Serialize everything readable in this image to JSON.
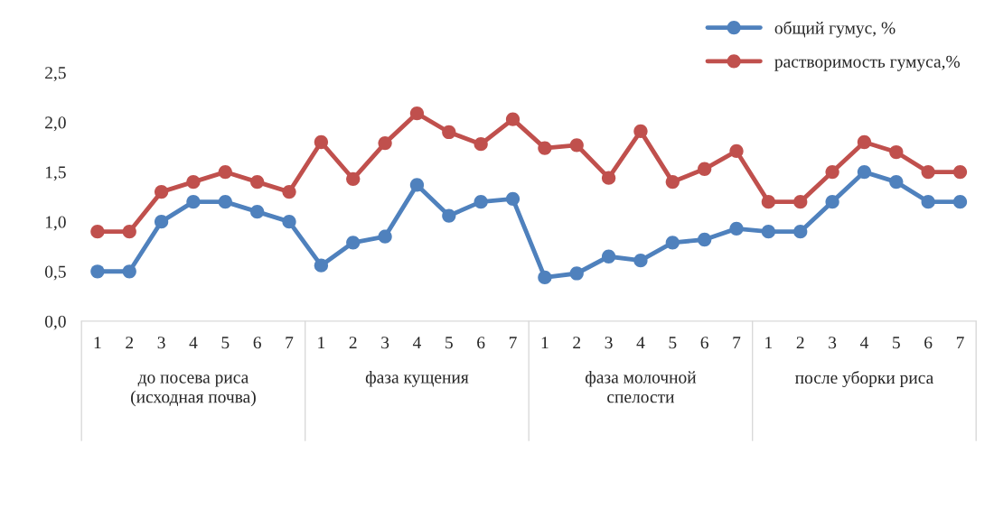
{
  "chart_data": {
    "type": "line",
    "categories": [
      "1",
      "2",
      "3",
      "4",
      "5",
      "6",
      "7",
      "1",
      "2",
      "3",
      "4",
      "5",
      "6",
      "7",
      "1",
      "2",
      "3",
      "4",
      "5",
      "6",
      "7",
      "1",
      "2",
      "3",
      "4",
      "5",
      "6",
      "7"
    ],
    "series": [
      {
        "name": "общий гумус, %",
        "color": "#4f81bd",
        "values": [
          0.5,
          0.5,
          1.0,
          1.2,
          1.2,
          1.1,
          1.0,
          0.56,
          0.79,
          0.85,
          1.37,
          1.06,
          1.2,
          1.23,
          0.44,
          0.48,
          0.65,
          0.61,
          0.79,
          0.82,
          0.93,
          0.9,
          0.9,
          1.2,
          1.5,
          1.4,
          1.2,
          1.2
        ]
      },
      {
        "name": "растворимость гумуса,%",
        "color": "#c0504d",
        "values": [
          0.9,
          0.9,
          1.3,
          1.4,
          1.5,
          1.4,
          1.3,
          1.8,
          1.43,
          1.79,
          2.09,
          1.9,
          1.78,
          2.03,
          1.74,
          1.77,
          1.44,
          1.91,
          1.4,
          1.53,
          1.71,
          1.2,
          1.2,
          1.5,
          1.8,
          1.7,
          1.5,
          1.5
        ]
      }
    ],
    "annotations": [
      "до посева риса\n(исходная почва)",
      "фаза кущения",
      "фаза молочной\nспелости",
      "после уборки риса"
    ],
    "ylim": [
      0,
      2.5
    ],
    "yticks": [
      {
        "value": 0,
        "label": "0,0"
      },
      {
        "value": 0.5,
        "label": "0,5"
      },
      {
        "value": 1.0,
        "label": "1,0"
      },
      {
        "value": 1.5,
        "label": "1,5"
      },
      {
        "value": 2.0,
        "label": "2,0"
      },
      {
        "value": 2.5,
        "label": "2,5"
      }
    ],
    "grid": false,
    "legend": "top right",
    "marker": "circle",
    "line_style": "solid"
  }
}
